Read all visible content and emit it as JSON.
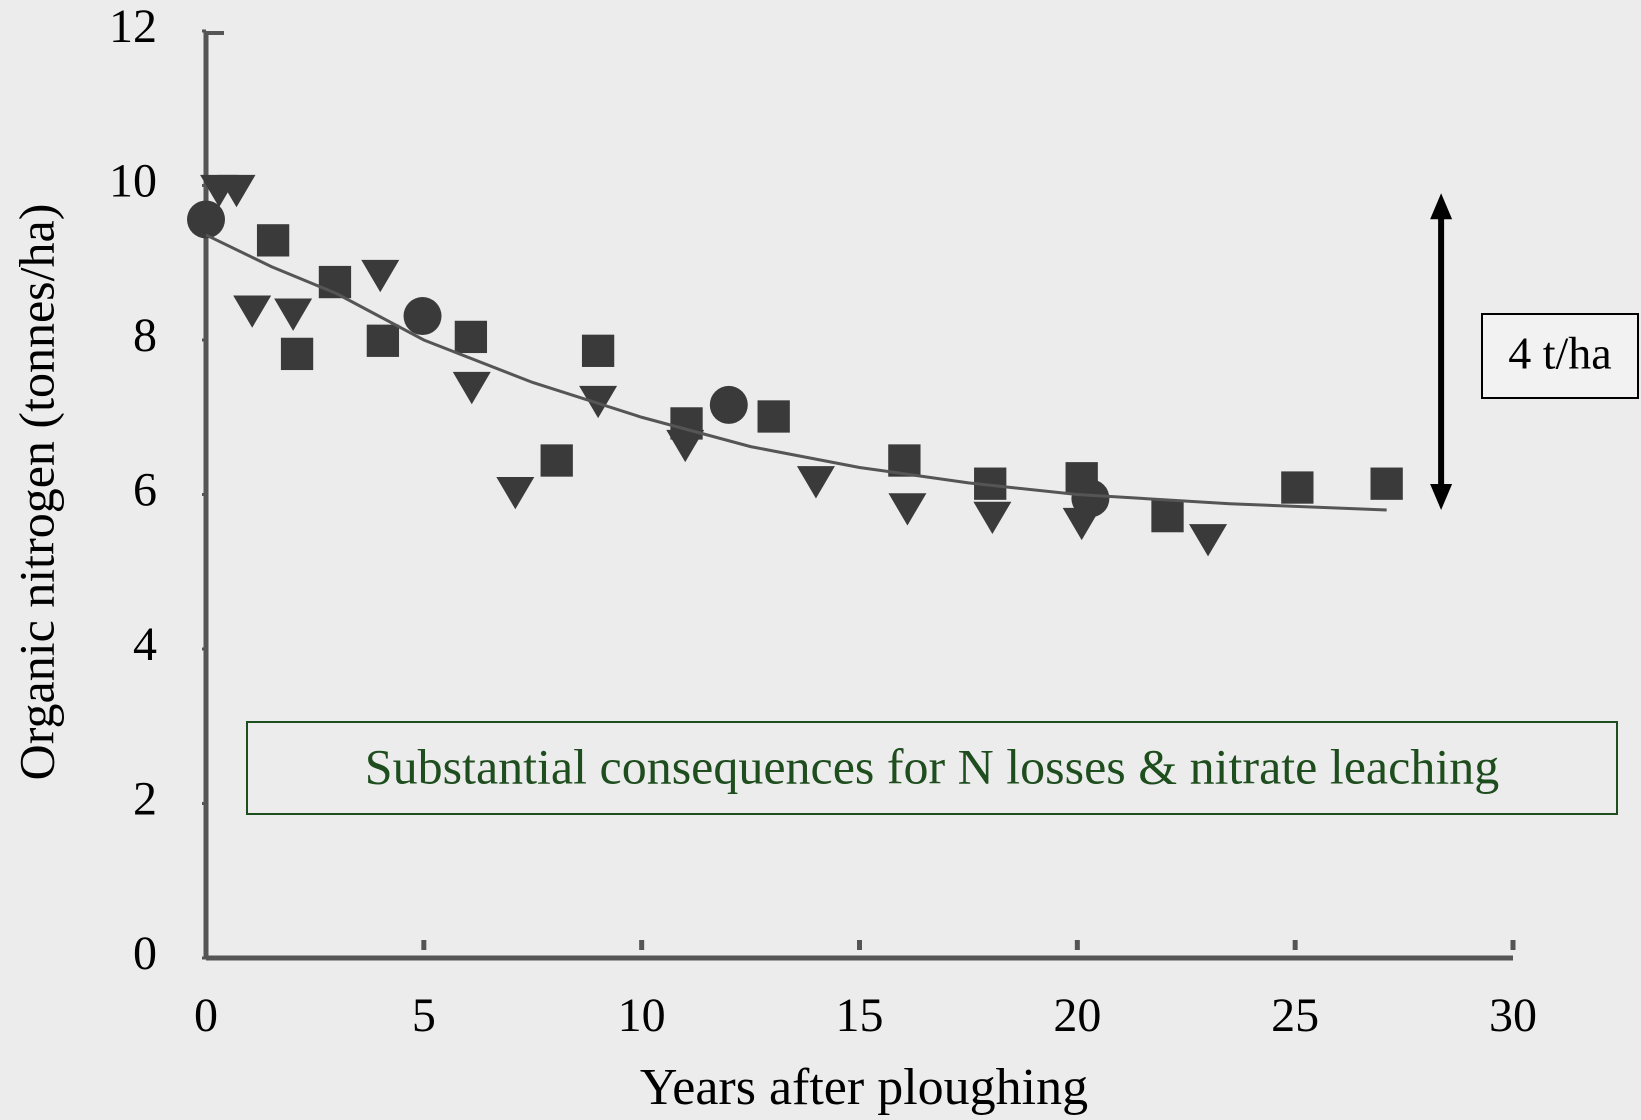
{
  "chart_data": {
    "type": "scatter",
    "xlabel": "Years after ploughing",
    "ylabel": "Organic nitrogen (tonnes/ha)",
    "xlim": [
      0,
      30
    ],
    "xticks": [
      0,
      5,
      10,
      15,
      20,
      25,
      30
    ],
    "ylim": [
      0,
      12
    ],
    "yticks": [
      0,
      2,
      4,
      6,
      8,
      10,
      12
    ],
    "series": [
      {
        "marker": "circle",
        "color": "#3a3a3a",
        "x": [
          0,
          4.97,
          12.0,
          20.3
        ],
        "values": [
          9.56,
          8.31,
          7.16,
          5.95
        ]
      },
      {
        "marker": "triangle",
        "color": "#3a3a3a",
        "x": [
          0.3,
          0.7,
          1.06,
          2.0,
          4.0,
          6.1,
          7.1,
          9.0,
          11.0,
          14.0,
          16.1,
          18.05,
          20.1,
          23.0
        ],
        "values": [
          9.94,
          9.94,
          8.38,
          8.34,
          8.84,
          7.39,
          6.03,
          7.21,
          6.64,
          6.17,
          5.82,
          5.71,
          5.63,
          5.42
        ]
      },
      {
        "marker": "square",
        "color": "#3a3a3a",
        "x": [
          1.54,
          2.09,
          2.96,
          4.06,
          6.08,
          8.05,
          9.0,
          11.03,
          13.03,
          16.03,
          18.0,
          20.1,
          22.07,
          25.05,
          27.1
        ],
        "values": [
          9.29,
          7.82,
          8.75,
          7.99,
          8.04,
          6.44,
          7.86,
          6.92,
          7.01,
          6.44,
          6.14,
          6.21,
          5.72,
          6.09,
          6.14
        ]
      },
      {
        "marker": "line",
        "color": "#555555",
        "x": [
          0,
          1.5,
          3,
          5,
          7.5,
          10,
          12.5,
          15,
          17.5,
          20,
          23.5,
          27.1
        ],
        "values": [
          9.36,
          8.95,
          8.6,
          8.0,
          7.45,
          7.0,
          6.62,
          6.35,
          6.15,
          6.0,
          5.88,
          5.8
        ]
      }
    ],
    "annotations": [
      {
        "text": "Substantial consequences for N losses & nitrate leaching",
        "color": "#1e4d1e"
      },
      {
        "text": "4 t/ha",
        "arrow_x": 28.35,
        "arrow_y": [
          5.8,
          9.9
        ]
      }
    ]
  }
}
